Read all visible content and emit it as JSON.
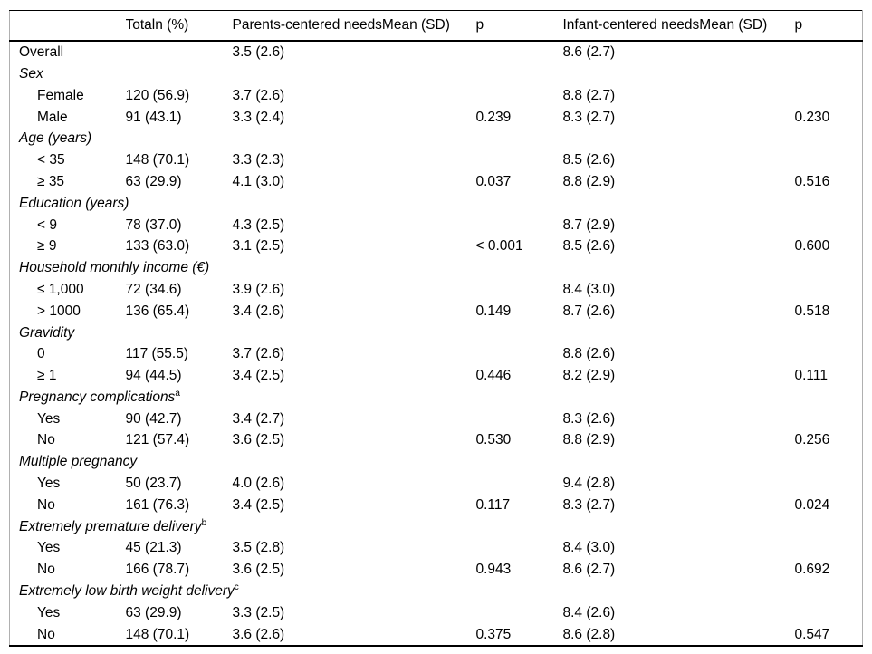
{
  "page": {
    "background_color": "#ffffff",
    "text_color": "#000000",
    "rule_color": "#000000",
    "frame_color": "#b0b0b0"
  },
  "table": {
    "columns": [
      {
        "label": ""
      },
      {
        "label": "Totaln (%)"
      },
      {
        "label": "Parents-centered needsMean (SD)"
      },
      {
        "label": "p"
      },
      {
        "label": "Infant-centered needsMean (SD)"
      },
      {
        "label": "p"
      }
    ],
    "rows": [
      {
        "type": "data",
        "indent": false,
        "label": "Overall",
        "total": "",
        "parents_mean": "3.5 (2.6)",
        "p_parents": "",
        "infant_mean": "8.6 (2.7)",
        "p_infant": ""
      },
      {
        "type": "section",
        "label": "Sex",
        "sup": ""
      },
      {
        "type": "data",
        "indent": true,
        "label": "Female",
        "total": "120 (56.9)",
        "parents_mean": "3.7 (2.6)",
        "p_parents": "",
        "infant_mean": "8.8 (2.7)",
        "p_infant": ""
      },
      {
        "type": "data",
        "indent": true,
        "label": "Male",
        "total": "91 (43.1)",
        "parents_mean": "3.3 (2.4)",
        "p_parents": "0.239",
        "infant_mean": "8.3 (2.7)",
        "p_infant": "0.230"
      },
      {
        "type": "section",
        "label": "Age (years)",
        "sup": ""
      },
      {
        "type": "data",
        "indent": true,
        "label": "< 35",
        "total": "148 (70.1)",
        "parents_mean": "3.3 (2.3)",
        "p_parents": "",
        "infant_mean": "8.5 (2.6)",
        "p_infant": ""
      },
      {
        "type": "data",
        "indent": true,
        "label": "≥ 35",
        "total": "63 (29.9)",
        "parents_mean": "4.1 (3.0)",
        "p_parents": "0.037",
        "infant_mean": "8.8 (2.9)",
        "p_infant": "0.516"
      },
      {
        "type": "section",
        "label": "Education (years)",
        "sup": ""
      },
      {
        "type": "data",
        "indent": true,
        "label": "< 9",
        "total": "78 (37.0)",
        "parents_mean": "4.3 (2.5)",
        "p_parents": "",
        "infant_mean": "8.7 (2.9)",
        "p_infant": ""
      },
      {
        "type": "data",
        "indent": true,
        "label": "≥ 9",
        "total": "133 (63.0)",
        "parents_mean": "3.1 (2.5)",
        "p_parents": "< 0.001",
        "infant_mean": "8.5 (2.6)",
        "p_infant": "0.600"
      },
      {
        "type": "section",
        "label": "Household monthly income (€)",
        "sup": ""
      },
      {
        "type": "data",
        "indent": true,
        "label": "≤ 1,000",
        "total": "72 (34.6)",
        "parents_mean": "3.9 (2.6)",
        "p_parents": "",
        "infant_mean": "8.4 (3.0)",
        "p_infant": ""
      },
      {
        "type": "data",
        "indent": true,
        "label": "> 1000",
        "total": "136 (65.4)",
        "parents_mean": "3.4 (2.6)",
        "p_parents": "0.149",
        "infant_mean": "8.7 (2.6)",
        "p_infant": "0.518"
      },
      {
        "type": "section",
        "label": "Gravidity",
        "sup": ""
      },
      {
        "type": "data",
        "indent": true,
        "label": "0",
        "total": "117 (55.5)",
        "parents_mean": "3.7 (2.6)",
        "p_parents": "",
        "infant_mean": "8.8 (2.6)",
        "p_infant": ""
      },
      {
        "type": "data",
        "indent": true,
        "label": "≥ 1",
        "total": "94 (44.5)",
        "parents_mean": "3.4 (2.5)",
        "p_parents": "0.446",
        "infant_mean": "8.2 (2.9)",
        "p_infant": "0.111"
      },
      {
        "type": "section",
        "label": "Pregnancy complications",
        "sup": "a"
      },
      {
        "type": "data",
        "indent": true,
        "label": "Yes",
        "total": "90 (42.7)",
        "parents_mean": "3.4 (2.7)",
        "p_parents": "",
        "infant_mean": "8.3 (2.6)",
        "p_infant": ""
      },
      {
        "type": "data",
        "indent": true,
        "label": "No",
        "total": "121 (57.4)",
        "parents_mean": "3.6 (2.5)",
        "p_parents": "0.530",
        "infant_mean": "8.8 (2.9)",
        "p_infant": "0.256"
      },
      {
        "type": "section",
        "label": "Multiple pregnancy",
        "sup": ""
      },
      {
        "type": "data",
        "indent": true,
        "label": "Yes",
        "total": "50 (23.7)",
        "parents_mean": "4.0 (2.6)",
        "p_parents": "",
        "infant_mean": "9.4 (2.8)",
        "p_infant": ""
      },
      {
        "type": "data",
        "indent": true,
        "label": "No",
        "total": "161 (76.3)",
        "parents_mean": "3.4 (2.5)",
        "p_parents": "0.117",
        "infant_mean": "8.3 (2.7)",
        "p_infant": "0.024"
      },
      {
        "type": "section",
        "label": "Extremely premature delivery",
        "sup": "b"
      },
      {
        "type": "data",
        "indent": true,
        "label": "Yes",
        "total": "45 (21.3)",
        "parents_mean": "3.5 (2.8)",
        "p_parents": "",
        "infant_mean": "8.4 (3.0)",
        "p_infant": ""
      },
      {
        "type": "data",
        "indent": true,
        "label": "No",
        "total": "166 (78.7)",
        "parents_mean": "3.6 (2.5)",
        "p_parents": "0.943",
        "infant_mean": "8.6 (2.7)",
        "p_infant": "0.692"
      },
      {
        "type": "section",
        "label": "Extremely low birth weight delivery",
        "sup": "c"
      },
      {
        "type": "data",
        "indent": true,
        "label": "Yes",
        "total": "63 (29.9)",
        "parents_mean": "3.3 (2.5)",
        "p_parents": "",
        "infant_mean": "8.4 (2.6)",
        "p_infant": ""
      },
      {
        "type": "data",
        "indent": true,
        "label": "No",
        "total": "148 (70.1)",
        "parents_mean": "3.6 (2.6)",
        "p_parents": "0.375",
        "infant_mean": "8.6 (2.8)",
        "p_infant": "0.547"
      }
    ]
  }
}
